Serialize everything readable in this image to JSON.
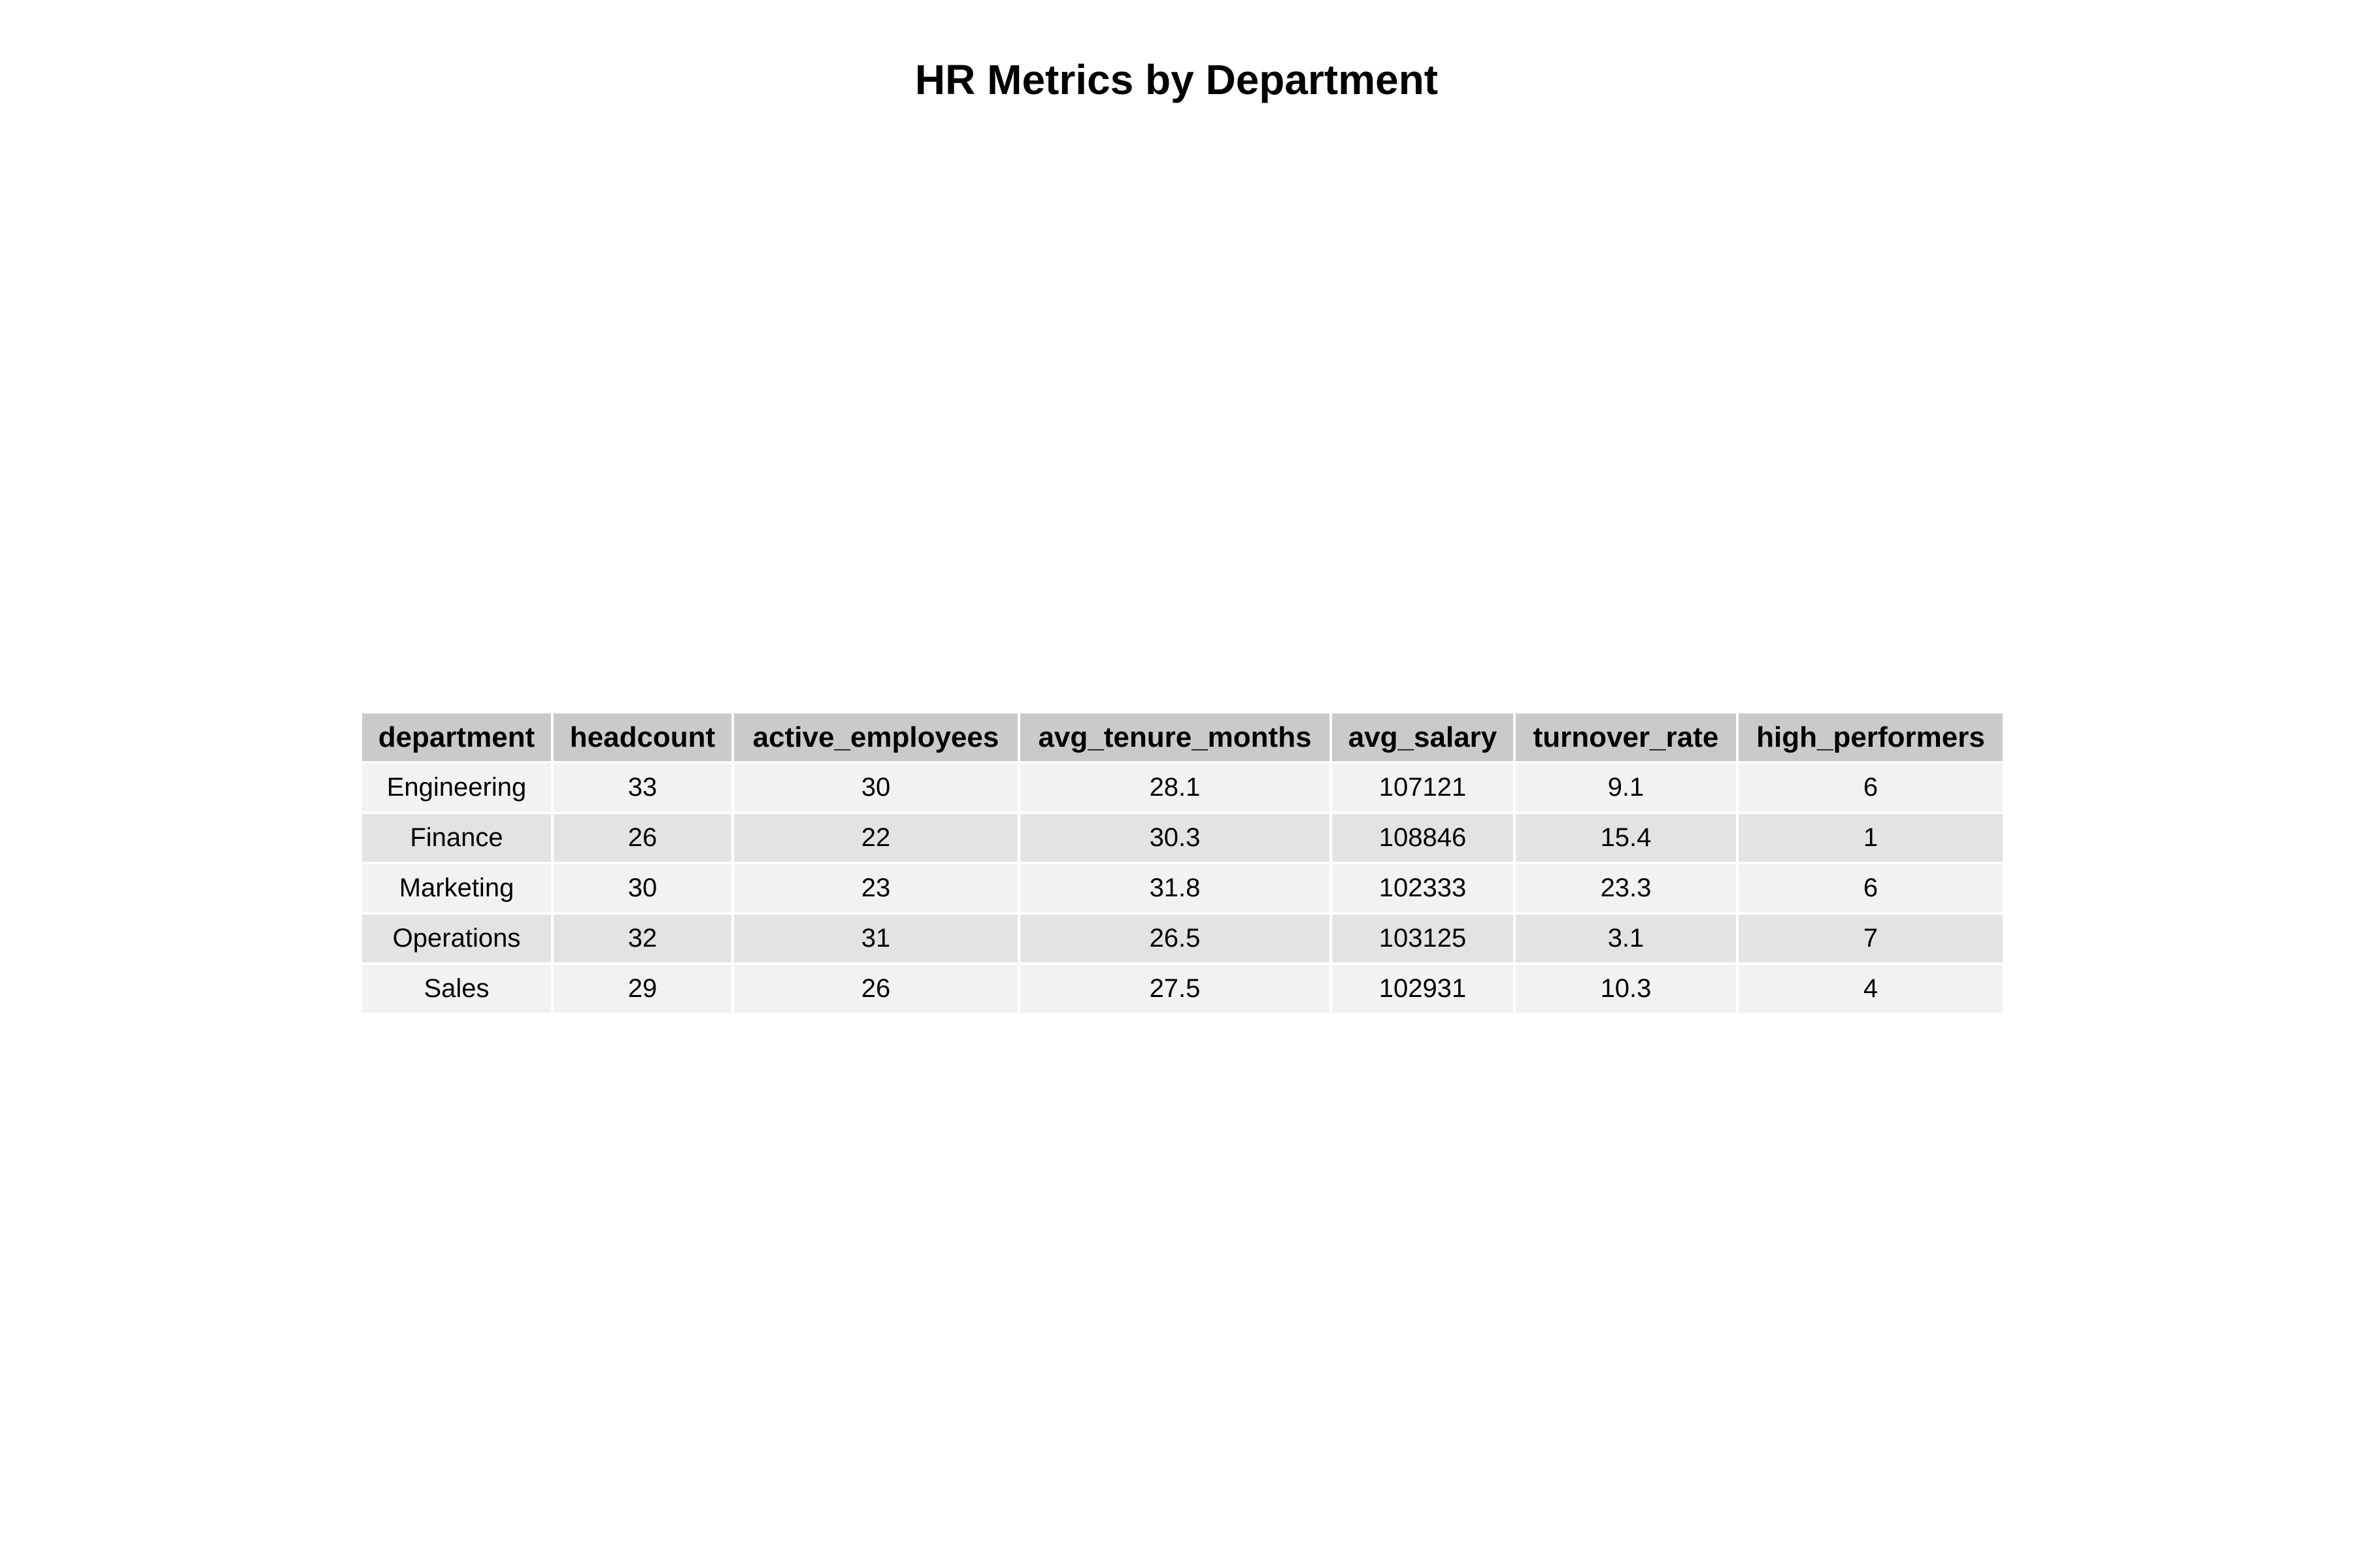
{
  "chart_data": {
    "type": "table",
    "title": "HR Metrics by Department",
    "columns": [
      "department",
      "headcount",
      "active_employees",
      "avg_tenure_months",
      "avg_salary",
      "turnover_rate",
      "high_performers"
    ],
    "rows": [
      [
        "Engineering",
        "33",
        "30",
        "28.1",
        "107121",
        "9.1",
        "6"
      ],
      [
        "Finance",
        "26",
        "22",
        "30.3",
        "108846",
        "15.4",
        "1"
      ],
      [
        "Marketing",
        "30",
        "23",
        "31.8",
        "102333",
        "23.3",
        "6"
      ],
      [
        "Operations",
        "32",
        "31",
        "26.5",
        "103125",
        "3.1",
        "7"
      ],
      [
        "Sales",
        "29",
        "26",
        "27.5",
        "102931",
        "10.3",
        "4"
      ]
    ],
    "colors": {
      "header_bg": "#cacaca",
      "row_odd_bg": "#f2f2f2",
      "row_even_bg": "#e3e3e3"
    }
  }
}
